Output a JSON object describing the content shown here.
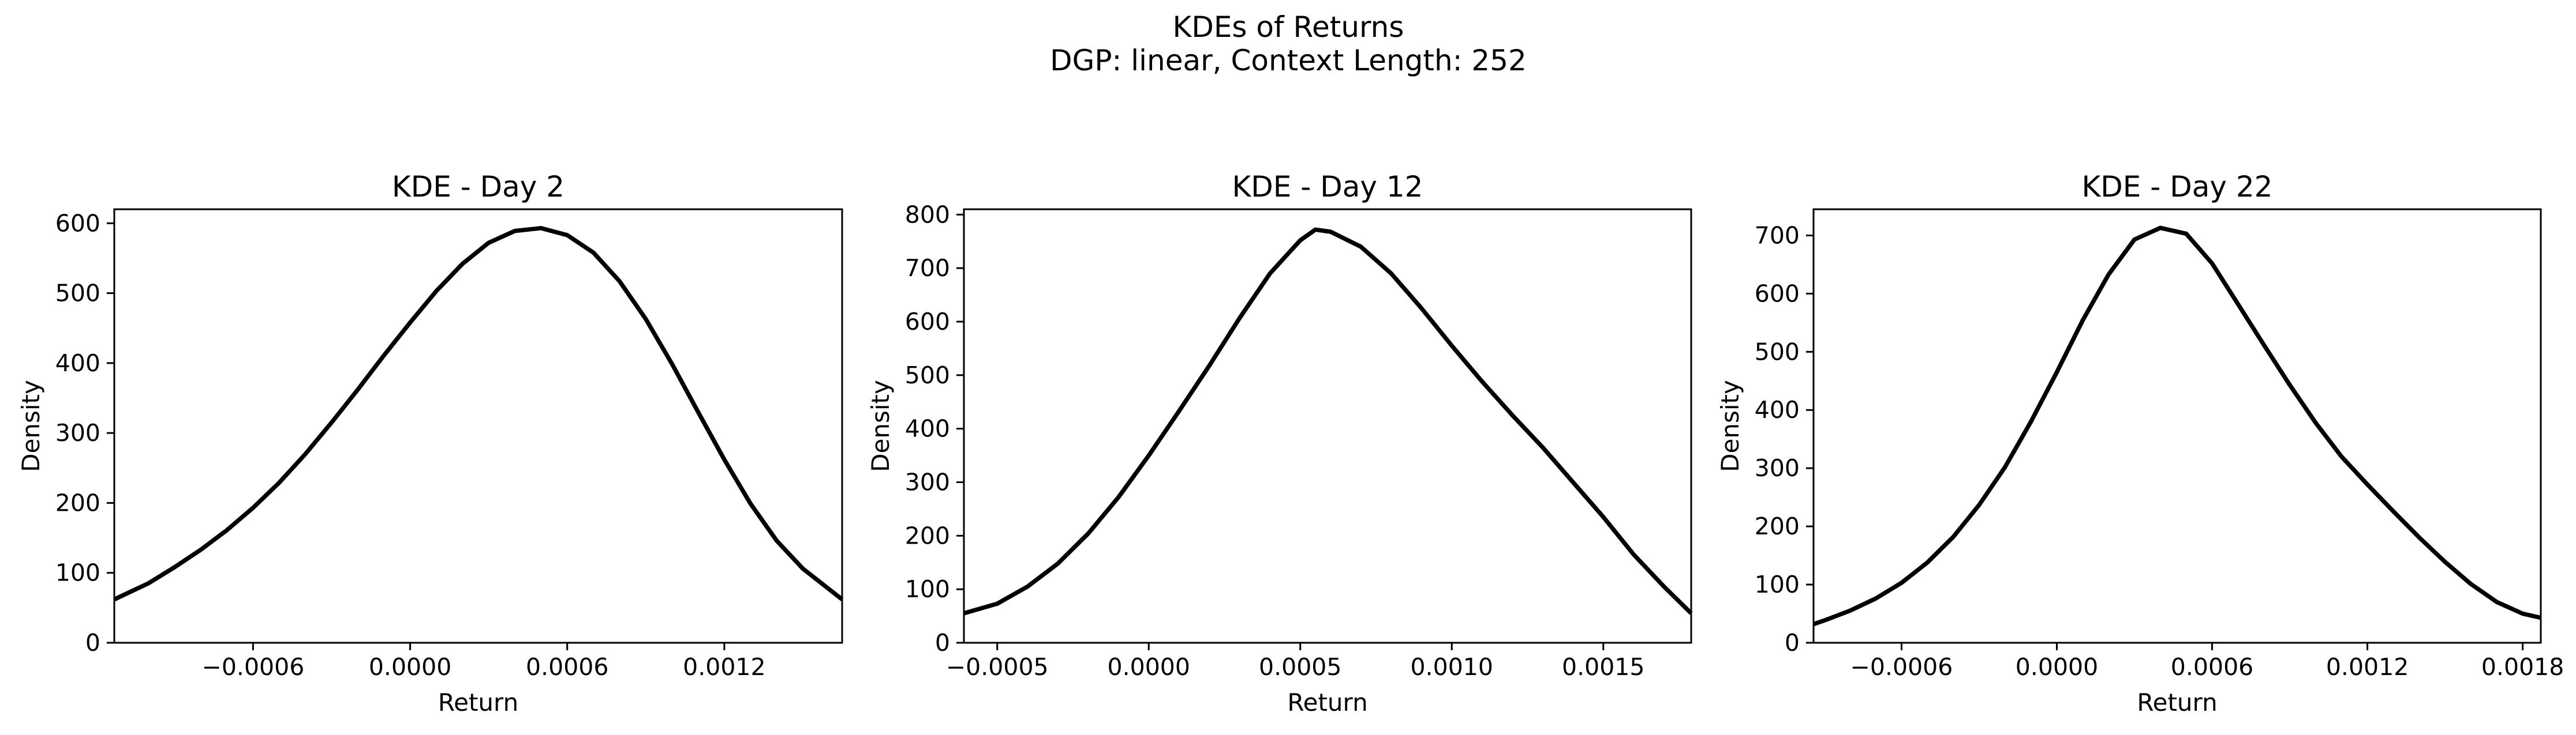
{
  "figure": {
    "title": "KDEs of Returns",
    "subtitle": "DGP: linear, Context Length: 252"
  },
  "colors": {
    "line": "#000000",
    "axes": "#000000",
    "background": "#ffffff"
  },
  "chart_data": [
    {
      "type": "line",
      "title": "KDE - Day 2",
      "xlabel": "Return",
      "ylabel": "Density",
      "xlim": [
        -0.00113,
        0.00165
      ],
      "ylim": [
        0,
        620
      ],
      "grid": false,
      "xticks": [
        -0.0006,
        0.0,
        0.0006,
        0.0012
      ],
      "xtick_labels": [
        "−0.0006",
        "0.0000",
        "0.0006",
        "0.0012"
      ],
      "yticks": [
        0,
        100,
        200,
        300,
        400,
        500,
        600
      ],
      "ytick_labels": [
        "0",
        "100",
        "200",
        "300",
        "400",
        "500",
        "600"
      ],
      "series": [
        {
          "x": [
            -0.00113,
            -0.001,
            -0.0009,
            -0.0008,
            -0.0007,
            -0.0006,
            -0.0005,
            -0.0004,
            -0.0003,
            -0.0002,
            -0.0001,
            0.0,
            0.0001,
            0.0002,
            0.0003,
            0.0004,
            0.0005,
            0.0006,
            0.0007,
            0.0008,
            0.0009,
            0.001,
            0.0011,
            0.0012,
            0.0013,
            0.0014,
            0.0015,
            0.00165
          ],
          "y": [
            62,
            85,
            108,
            133,
            161,
            193,
            229,
            270,
            315,
            362,
            411,
            458,
            503,
            542,
            572,
            589,
            593,
            583,
            558,
            517,
            463,
            399,
            330,
            262,
            199,
            146,
            106,
            62
          ]
        }
      ]
    },
    {
      "type": "line",
      "title": "KDE - Day 12",
      "xlabel": "Return",
      "ylabel": "Density",
      "xlim": [
        -0.00061,
        0.00179
      ],
      "ylim": [
        0,
        810
      ],
      "grid": false,
      "xticks": [
        -0.0005,
        0.0,
        0.0005,
        0.001,
        0.0015
      ],
      "xtick_labels": [
        "−0.0005",
        "0.0000",
        "0.0005",
        "0.0010",
        "0.0015"
      ],
      "yticks": [
        0,
        100,
        200,
        300,
        400,
        500,
        600,
        700,
        800
      ],
      "ytick_labels": [
        "0",
        "100",
        "200",
        "300",
        "400",
        "500",
        "600",
        "700",
        "800"
      ],
      "series": [
        {
          "x": [
            -0.00061,
            -0.0005,
            -0.0004,
            -0.0003,
            -0.0002,
            -0.0001,
            0.0,
            0.0001,
            0.0002,
            0.0003,
            0.0004,
            0.0005,
            0.00055,
            0.0006,
            0.0007,
            0.0008,
            0.0009,
            0.001,
            0.0011,
            0.0012,
            0.0013,
            0.0014,
            0.0015,
            0.0016,
            0.0017,
            0.00179
          ],
          "y": [
            55,
            73,
            105,
            148,
            204,
            272,
            350,
            433,
            518,
            607,
            690,
            752,
            772,
            768,
            740,
            690,
            625,
            555,
            488,
            425,
            365,
            300,
            235,
            165,
            105,
            55
          ]
        }
      ]
    },
    {
      "type": "line",
      "title": "KDE - Day 22",
      "xlabel": "Return",
      "ylabel": "Density",
      "xlim": [
        -0.00094,
        0.00187
      ],
      "ylim": [
        0,
        745
      ],
      "grid": false,
      "xticks": [
        -0.0006,
        0.0,
        0.0006,
        0.0012,
        0.0018
      ],
      "xtick_labels": [
        "−0.0006",
        "0.0000",
        "0.0006",
        "0.0012",
        "0.0018"
      ],
      "yticks": [
        0,
        100,
        200,
        300,
        400,
        500,
        600,
        700
      ],
      "ytick_labels": [
        "0",
        "100",
        "200",
        "300",
        "400",
        "500",
        "600",
        "700"
      ],
      "series": [
        {
          "x": [
            -0.00094,
            -0.0009,
            -0.0008,
            -0.0007,
            -0.0006,
            -0.0005,
            -0.0004,
            -0.0003,
            -0.0002,
            -0.0001,
            0.0,
            0.0001,
            0.0002,
            0.0003,
            0.0004,
            0.0005,
            0.0006,
            0.0007,
            0.0008,
            0.0009,
            0.001,
            0.0011,
            0.0012,
            0.0013,
            0.0014,
            0.0015,
            0.0016,
            0.0017,
            0.0018,
            0.00187
          ],
          "y": [
            32,
            38,
            55,
            76,
            103,
            138,
            182,
            237,
            302,
            380,
            465,
            554,
            633,
            693,
            713,
            703,
            652,
            582,
            512,
            443,
            378,
            320,
            272,
            226,
            181,
            139,
            101,
            70,
            50,
            43
          ]
        }
      ]
    }
  ]
}
